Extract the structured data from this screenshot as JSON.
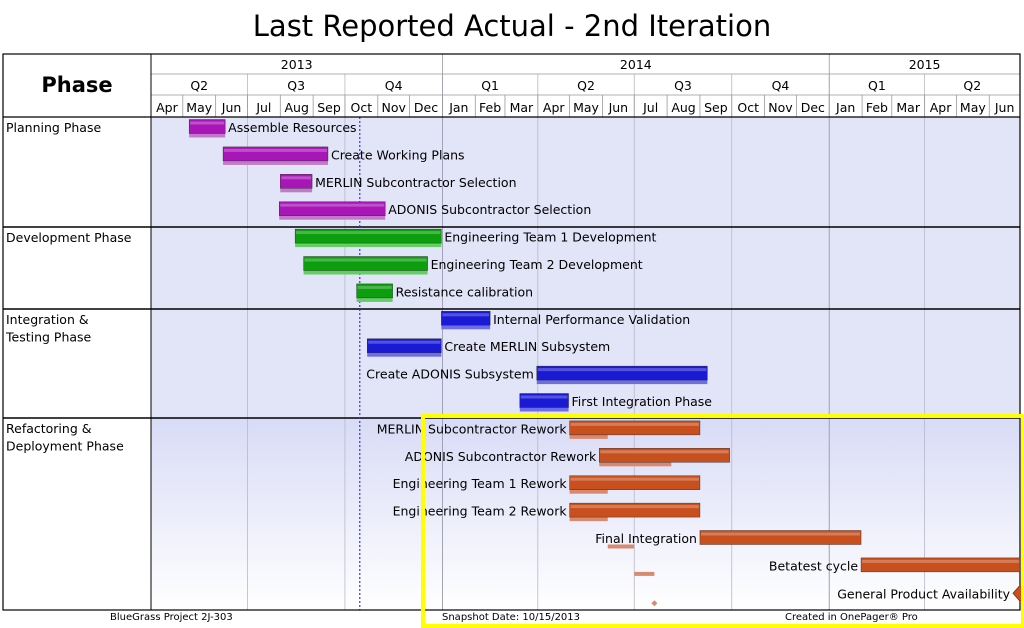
{
  "title": "Last Reported Actual - 2nd Iteration",
  "header": {
    "phase_label": "Phase"
  },
  "footer": {
    "project": "BlueGrass Project 2J-303",
    "snapshot": "Snapshot Date: 10/15/2013",
    "created": "Created in OnePager® Pro"
  },
  "colors": {
    "planning": "#a816b8",
    "development": "#0c9e0c",
    "integration": "#1a1ad4",
    "refactoring": "#c8501e",
    "baseline_planning": "#c07ac8",
    "baseline_development": "#66cc66",
    "baseline_integration": "#6d6de6",
    "baseline_refactoring": "#d88a70",
    "panel": "#e2e4f8",
    "today_line": "#3030ff",
    "highlight": "#ffff00"
  },
  "chart_data": {
    "type": "gantt",
    "title": "Last Reported Actual - 2nd Iteration",
    "snapshot_date": "10/15/2013",
    "years": [
      "2013",
      "2014",
      "2015"
    ],
    "quarters": [
      "Q2",
      "Q3",
      "Q4",
      "Q1",
      "Q2",
      "Q3",
      "Q4",
      "Q1",
      "Q2"
    ],
    "months": [
      "Apr",
      "May",
      "Jun",
      "Jul",
      "Aug",
      "Sep",
      "Oct",
      "Nov",
      "Dec",
      "Jan",
      "Feb",
      "Mar",
      "Apr",
      "May",
      "Jun",
      "Jul",
      "Aug",
      "Sep",
      "Oct",
      "Nov",
      "Dec",
      "Jan",
      "Feb",
      "Mar",
      "Apr",
      "May",
      "Jun"
    ],
    "axis_range": [
      "2013-04-01",
      "2015-06-30"
    ],
    "phases": [
      {
        "name": "Planning Phase",
        "color_key": "planning",
        "tasks": [
          {
            "name": "Assemble Resources",
            "start": "2013-05-07",
            "end": "2013-06-10",
            "baseline_start": "2013-05-07",
            "baseline_end": "2013-06-10",
            "label_side": "right"
          },
          {
            "name": "Create Working Plans",
            "start": "2013-06-08",
            "end": "2013-09-15",
            "baseline_start": "2013-06-08",
            "baseline_end": "2013-09-15",
            "label_side": "right"
          },
          {
            "name": "MERLIN Subcontractor Selection",
            "start": "2013-08-01",
            "end": "2013-08-31",
            "baseline_start": "2013-08-01",
            "baseline_end": "2013-08-31",
            "label_side": "right"
          },
          {
            "name": "ADONIS Subcontractor Selection",
            "start": "2013-07-31",
            "end": "2013-11-08",
            "baseline_start": "2013-07-31",
            "baseline_end": "2013-11-08",
            "label_side": "right"
          }
        ]
      },
      {
        "name": "Development Phase",
        "color_key": "development",
        "tasks": [
          {
            "name": "Engineering Team 1 Development",
            "start": "2013-08-15",
            "end": "2013-12-31",
            "baseline_start": "2013-08-15",
            "baseline_end": "2013-12-31",
            "label_side": "right"
          },
          {
            "name": "Engineering Team 2 Development",
            "start": "2013-08-23",
            "end": "2013-12-18",
            "baseline_start": "2013-08-23",
            "baseline_end": "2013-12-18",
            "label_side": "right"
          },
          {
            "name": "Resistance calibration",
            "start": "2013-10-12",
            "end": "2013-11-15",
            "baseline_start": "2013-10-12",
            "baseline_end": "2013-11-15",
            "label_side": "right"
          }
        ]
      },
      {
        "name": "Integration & Testing Phase",
        "color_key": "integration",
        "tasks": [
          {
            "name": "Internal Performance Validation",
            "start": "2013-12-31",
            "end": "2014-02-15",
            "baseline_start": "2013-12-31",
            "baseline_end": "2014-02-15",
            "label_side": "right"
          },
          {
            "name": "Create MERLIN Subsystem",
            "start": "2013-10-22",
            "end": "2013-12-31",
            "baseline_start": "2013-10-22",
            "baseline_end": "2013-12-31",
            "label_side": "right"
          },
          {
            "name": "Create ADONIS Subsystem",
            "start": "2014-03-31",
            "end": "2014-09-08",
            "baseline_start": "2014-03-31",
            "baseline_end": "2014-09-08",
            "label_side": "left"
          },
          {
            "name": "First Integration Phase",
            "start": "2014-03-15",
            "end": "2014-04-30",
            "baseline_start": "2014-03-15",
            "baseline_end": "2014-04-30",
            "label_side": "right"
          }
        ]
      },
      {
        "name": "Refactoring & Deployment Phase",
        "color_key": "refactoring",
        "tasks": [
          {
            "name": "MERLIN Subcontractor Rework",
            "start": "2014-05-01",
            "end": "2014-09-01",
            "baseline_start": "2014-05-01",
            "baseline_end": "2014-06-06",
            "label_side": "left"
          },
          {
            "name": "ADONIS Subcontractor Rework",
            "start": "2014-05-29",
            "end": "2014-09-29",
            "baseline_start": "2014-05-29",
            "baseline_end": "2014-08-05",
            "label_side": "left"
          },
          {
            "name": "Engineering Team 1 Rework",
            "start": "2014-05-01",
            "end": "2014-09-01",
            "baseline_start": "2014-05-01",
            "baseline_end": "2014-06-06",
            "label_side": "left"
          },
          {
            "name": "Engineering Team 2 Rework",
            "start": "2014-05-01",
            "end": "2014-09-01",
            "baseline_start": "2014-05-01",
            "baseline_end": "2014-06-06",
            "label_side": "left"
          },
          {
            "name": "Final Integration",
            "start": "2014-09-01",
            "end": "2015-01-31",
            "baseline_start": "2014-06-06",
            "baseline_end": "2014-07-01",
            "label_side": "left"
          },
          {
            "name": "Betatest cycle",
            "start": "2015-01-31",
            "end": "2015-06-30",
            "baseline_start": "2014-07-01",
            "baseline_end": "2014-07-20",
            "label_side": "left"
          },
          {
            "name": "General Product Availability",
            "milestone": "2015-06-30",
            "baseline_milestone": "2014-07-20",
            "label_side": "left"
          }
        ]
      }
    ]
  }
}
